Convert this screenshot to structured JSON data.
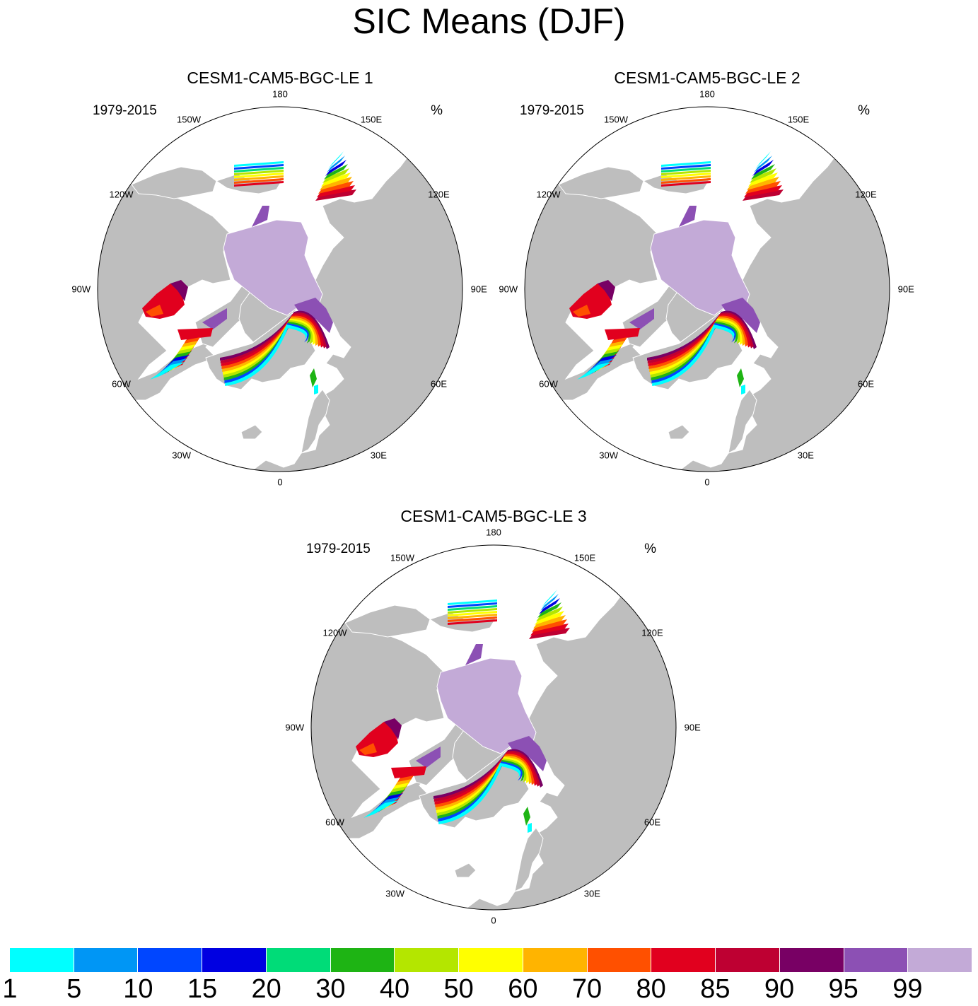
{
  "title": "SIC Means (DJF)",
  "panels": [
    {
      "title": "CESM1-CAM5-BGC-LE 1",
      "years": "1979-2015",
      "units": "%"
    },
    {
      "title": "CESM1-CAM5-BGC-LE 2",
      "years": "1979-2015",
      "units": "%"
    },
    {
      "title": "CESM1-CAM5-BGC-LE 3",
      "years": "1979-2015",
      "units": "%"
    }
  ],
  "longitude_labels": [
    "180",
    "150E",
    "120E",
    "90E",
    "60E",
    "30E",
    "0",
    "30W",
    "60W",
    "90W",
    "120W",
    "150W"
  ],
  "colorbar": {
    "levels": [
      "1",
      "5",
      "10",
      "15",
      "20",
      "30",
      "40",
      "50",
      "60",
      "70",
      "80",
      "85",
      "90",
      "95",
      "99"
    ],
    "colors": [
      "#00ffff",
      "#0096f5",
      "#0046ff",
      "#0000e1",
      "#00dc78",
      "#1eb414",
      "#b4e600",
      "#ffff00",
      "#ffb400",
      "#ff5000",
      "#e1001e",
      "#be0032",
      "#780064",
      "#8c50b4",
      "#c3aad7"
    ]
  },
  "colors": {
    "land": "#bebebe",
    "ocean": "#ffffff",
    "coast": "#ffffff",
    "outline": "#000000"
  }
}
